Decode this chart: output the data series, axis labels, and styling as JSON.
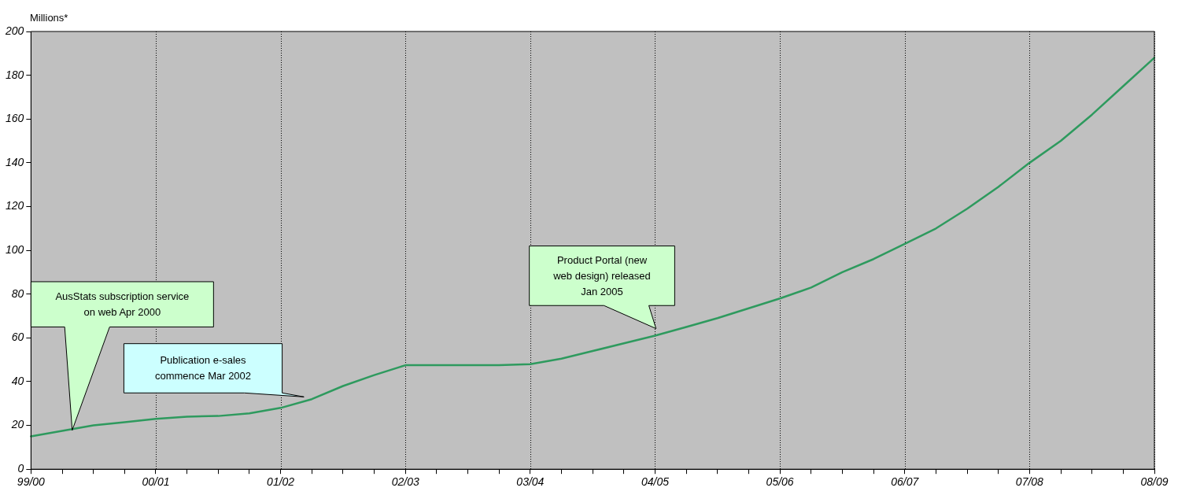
{
  "chart_data": {
    "type": "line",
    "ylabel": "Millions*",
    "categories": [
      "99/00",
      null,
      null,
      null,
      "00/01",
      null,
      null,
      null,
      "01/02",
      null,
      null,
      null,
      "02/03",
      null,
      null,
      null,
      "03/04",
      null,
      null,
      null,
      "04/05",
      null,
      null,
      null,
      "05/06",
      null,
      null,
      null,
      "06/07",
      null,
      null,
      null,
      "07/08",
      null,
      null,
      null,
      "08/09"
    ],
    "series": [
      {
        "color": "#2e9a5e",
        "values": [
          15,
          17.5,
          20,
          21.5,
          23,
          24,
          24.3,
          25.5,
          28,
          32,
          38,
          43,
          47.5,
          47.5,
          47.5,
          47.5,
          48,
          50.5,
          54,
          57.5,
          61,
          65,
          69,
          73.5,
          78,
          83,
          90,
          96,
          103,
          110,
          119,
          129,
          140,
          150,
          162,
          175,
          188
        ]
      }
    ],
    "ylim": [
      0,
      200
    ],
    "yticks": [
      0,
      20,
      40,
      60,
      80,
      100,
      120,
      140,
      160,
      180,
      200
    ],
    "grid": "x",
    "marker": "none",
    "line_style": "solid",
    "legend": false,
    "annotations": [
      "AusStats subscription service on web Apr 2000",
      "Publication e-sales commence Mar 2002",
      "Product Portal (new web design) released Jan 2005"
    ]
  }
}
